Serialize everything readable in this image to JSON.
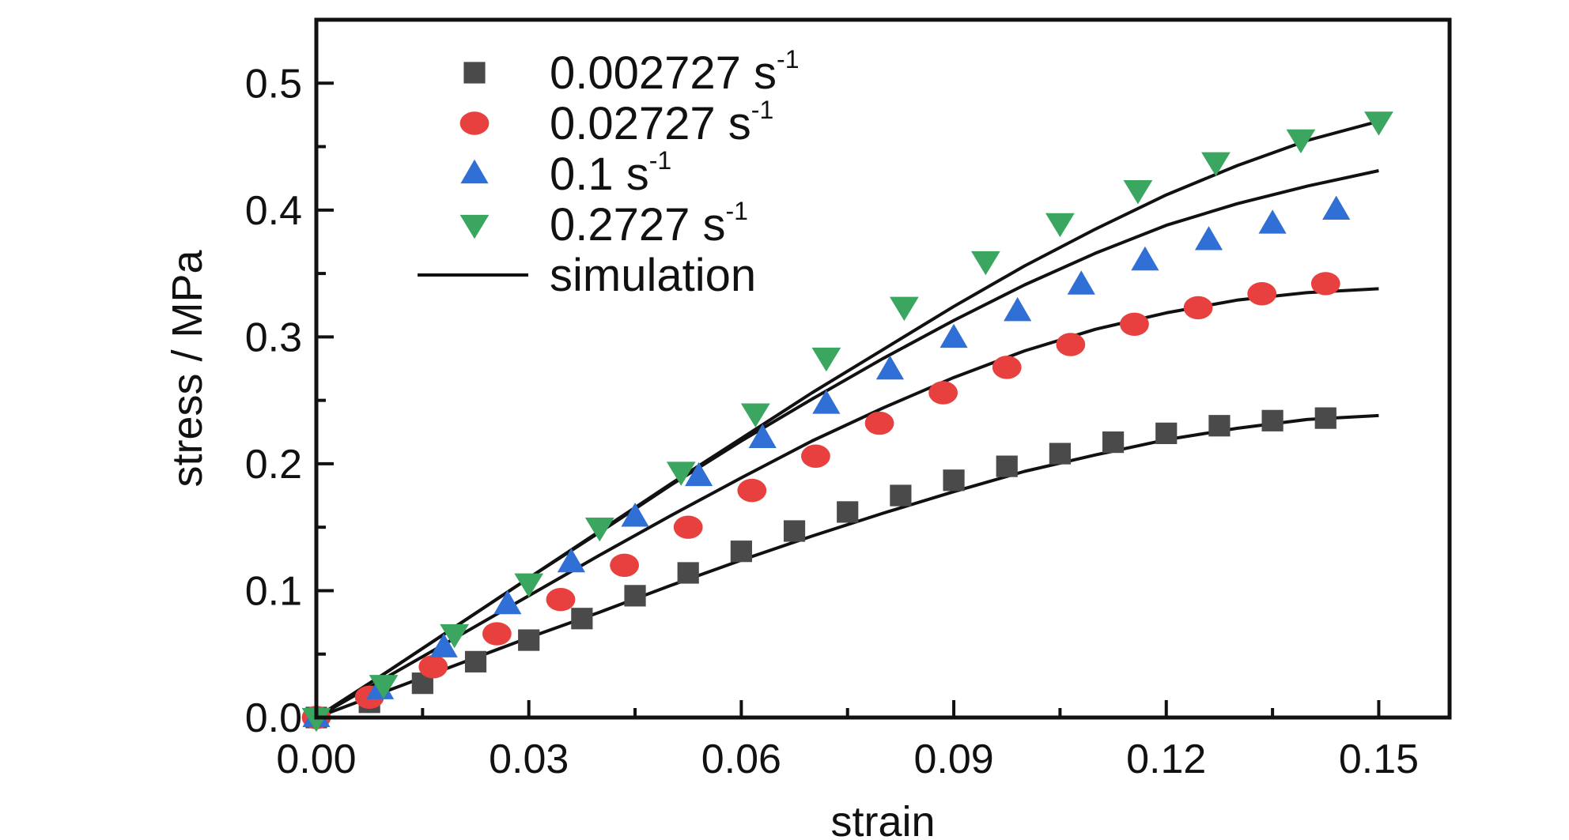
{
  "chart_data": {
    "type": "scatter",
    "xlabel": "strain",
    "ylabel": "stress / MPa",
    "xlim": [
      0.0,
      0.16
    ],
    "ylim": [
      0.0,
      0.55
    ],
    "xticks": [
      "0.00",
      "0.03",
      "0.06",
      "0.09",
      "0.12",
      "0.15"
    ],
    "yticks": [
      "0.0",
      "0.1",
      "0.2",
      "0.3",
      "0.4",
      "0.5"
    ],
    "grid": false,
    "legend_position": "top-left",
    "series": [
      {
        "name": "0.002727 s",
        "unit_sup": "-1",
        "marker": "square",
        "color": "#4a4a4a",
        "x": [
          0.0,
          0.0075,
          0.015,
          0.0225,
          0.03,
          0.0375,
          0.045,
          0.0525,
          0.06,
          0.0675,
          0.075,
          0.0825,
          0.09,
          0.0975,
          0.105,
          0.1125,
          0.12,
          0.1275,
          0.135,
          0.1425
        ],
        "y": [
          0.0,
          0.012,
          0.027,
          0.044,
          0.061,
          0.078,
          0.096,
          0.114,
          0.131,
          0.147,
          0.162,
          0.175,
          0.187,
          0.198,
          0.208,
          0.217,
          0.224,
          0.23,
          0.234,
          0.236
        ]
      },
      {
        "name": "0.02727 s",
        "unit_sup": "-1",
        "marker": "circle",
        "color": "#e8403e",
        "x": [
          0.0,
          0.0075,
          0.0165,
          0.0255,
          0.0345,
          0.0435,
          0.0525,
          0.0615,
          0.0705,
          0.0795,
          0.0885,
          0.0975,
          0.1065,
          0.1155,
          0.1245,
          0.1335,
          0.1425
        ],
        "y": [
          0.0,
          0.016,
          0.04,
          0.066,
          0.093,
          0.12,
          0.15,
          0.179,
          0.206,
          0.232,
          0.256,
          0.276,
          0.294,
          0.31,
          0.323,
          0.334,
          0.342
        ]
      },
      {
        "name": "0.1 s",
        "unit_sup": "-1",
        "marker": "triangle-up",
        "color": "#2f6fd6",
        "x": [
          0.0,
          0.009,
          0.018,
          0.027,
          0.036,
          0.045,
          0.054,
          0.063,
          0.072,
          0.081,
          0.09,
          0.099,
          0.108,
          0.117,
          0.126,
          0.135,
          0.144
        ],
        "y": [
          0.0,
          0.022,
          0.055,
          0.089,
          0.122,
          0.158,
          0.19,
          0.22,
          0.247,
          0.274,
          0.299,
          0.32,
          0.341,
          0.36,
          0.376,
          0.389,
          0.4
        ]
      },
      {
        "name": "0.2727 s",
        "unit_sup": "-1",
        "marker": "triangle-down",
        "color": "#3aa65f",
        "x": [
          0.0,
          0.0095,
          0.0195,
          0.03,
          0.04,
          0.0515,
          0.062,
          0.072,
          0.083,
          0.0945,
          0.105,
          0.116,
          0.127,
          0.139,
          0.15
        ],
        "y": [
          0.0,
          0.026,
          0.066,
          0.106,
          0.15,
          0.194,
          0.24,
          0.284,
          0.324,
          0.36,
          0.39,
          0.416,
          0.438,
          0.456,
          0.47
        ]
      },
      {
        "name": "simulation",
        "marker": "line",
        "color": "#111111",
        "curves": [
          {
            "x": [
              0.0,
              0.01,
              0.02,
              0.03,
              0.04,
              0.05,
              0.06,
              0.07,
              0.08,
              0.09,
              0.1,
              0.11,
              0.12,
              0.13,
              0.14,
              0.15
            ],
            "y": [
              0.0,
              0.021,
              0.042,
              0.063,
              0.083,
              0.104,
              0.124,
              0.143,
              0.161,
              0.178,
              0.194,
              0.207,
              0.219,
              0.228,
              0.235,
              0.238
            ]
          },
          {
            "x": [
              0.0,
              0.01,
              0.02,
              0.03,
              0.04,
              0.05,
              0.06,
              0.07,
              0.08,
              0.09,
              0.1,
              0.11,
              0.12,
              0.13,
              0.14,
              0.15
            ],
            "y": [
              0.0,
              0.032,
              0.064,
              0.096,
              0.128,
              0.159,
              0.189,
              0.218,
              0.244,
              0.268,
              0.289,
              0.306,
              0.319,
              0.329,
              0.335,
              0.338
            ]
          },
          {
            "x": [
              0.0,
              0.01,
              0.02,
              0.03,
              0.04,
              0.05,
              0.06,
              0.07,
              0.08,
              0.09,
              0.1,
              0.11,
              0.12,
              0.13,
              0.14,
              0.15
            ],
            "y": [
              0.0,
              0.036,
              0.073,
              0.11,
              0.146,
              0.183,
              0.218,
              0.251,
              0.283,
              0.313,
              0.341,
              0.366,
              0.388,
              0.405,
              0.419,
              0.431
            ]
          },
          {
            "x": [
              0.0,
              0.01,
              0.02,
              0.03,
              0.04,
              0.05,
              0.06,
              0.07,
              0.08,
              0.09,
              0.1,
              0.11,
              0.12,
              0.13,
              0.14,
              0.15
            ],
            "y": [
              0.0,
              0.036,
              0.073,
              0.11,
              0.147,
              0.184,
              0.22,
              0.256,
              0.29,
              0.324,
              0.356,
              0.385,
              0.412,
              0.435,
              0.455,
              0.47
            ]
          }
        ]
      }
    ]
  }
}
